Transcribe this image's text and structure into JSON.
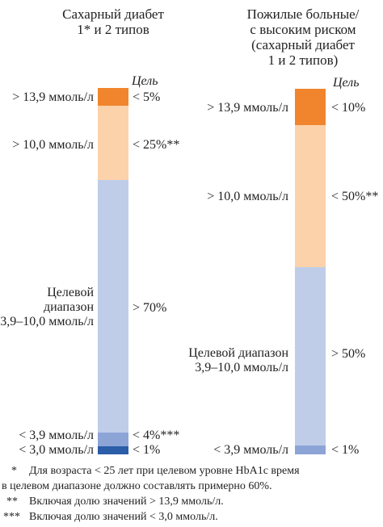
{
  "chart_data": [
    {
      "type": "stacked-bar",
      "title": "Сахарный диабет\n1* и 2 типов",
      "title_lines": [
        "Сахарный диабет",
        "1* и 2 типов"
      ],
      "goal_header": "Цель",
      "segments": [
        {
          "range": "> 13,9 ммоль/л",
          "target": "< 5%",
          "value": 5,
          "color": "#f0852e"
        },
        {
          "range": "> 10,0 ммоль/л",
          "target": "< 25%**",
          "value": 25,
          "color": "#fcd2aa"
        },
        {
          "range": "Целевой\nдиапазон\n3,9–10,0 ммоль/л",
          "target": "> 70%",
          "value": 70,
          "color": "#bfcde9"
        },
        {
          "range": "< 3,9 ммоль/л",
          "target": "< 4%***",
          "value": 4,
          "color": "#8da4d6"
        },
        {
          "range": "< 3,0 ммоль/л",
          "target": "< 1%",
          "value": 1,
          "color": "#2b5da8"
        }
      ]
    },
    {
      "type": "stacked-bar",
      "title": "Пожилые больные/\nс высоким риском\n(сахарный диабет\n1 и 2 типов)",
      "title_lines": [
        "Пожилые больные/",
        "с высоким риском",
        "(сахарный диабет",
        "1 и 2 типов)"
      ],
      "goal_header": "Цель",
      "segments": [
        {
          "range": "> 13,9 ммоль/л",
          "target": "< 10%",
          "value": 10,
          "color": "#f0852e"
        },
        {
          "range": "> 10,0 ммоль/л",
          "target": "< 50%**",
          "value": 50,
          "color": "#fcd2aa"
        },
        {
          "range": "Целевой диапазон\n3,9–10,0 ммоль/л",
          "target": "> 50%",
          "value": 50,
          "color": "#bfcde9"
        },
        {
          "range": "< 3,9 ммоль/л",
          "target": "< 1%",
          "value": 1,
          "color": "#8da4d6"
        }
      ]
    }
  ],
  "footnotes": {
    "f1_mark": "*",
    "f1_line1": "Для возраста < 25 лет при целевом уровне HbA1c время",
    "f1_line2": "в целевом диапазоне должно составлять примерно 60%.",
    "f2_mark": "**",
    "f2_text": "Включая долю значений > 13,9 ммоль/л.",
    "f3_mark": "***",
    "f3_text": "Включая долю значений < 3,0 ммоль/л."
  },
  "labels": {
    "left": {
      "range_1": "> 13,9 ммоль/л",
      "range_2": "> 10,0 ммоль/л",
      "target_line1": "Целевой",
      "target_line2": "диапазон",
      "target_line3": "3,9–10,0 ммоль/л",
      "range_4": "< 3,9 ммоль/л",
      "range_5": "< 3,0 ммоль/л",
      "goal_1": "< 5%",
      "goal_2": "< 25%**",
      "goal_3": "> 70%",
      "goal_4": "< 4%***",
      "goal_5": "< 1%"
    },
    "right": {
      "range_1": "> 13,9 ммоль/л",
      "range_2": "> 10,0 ммоль/л",
      "target_line1": "Целевой диапазон",
      "target_line2": "3,9–10,0 ммоль/л",
      "range_4": "< 3,9 ммоль/л",
      "goal_1": "< 10%",
      "goal_2": "< 50%**",
      "goal_3": "> 50%",
      "goal_4": "< 1%"
    }
  },
  "colors": {
    "very_high": "#f0852e",
    "high": "#fcd2aa",
    "target": "#bfcde9",
    "low": "#8da4d6",
    "very_low": "#2b5da8"
  }
}
